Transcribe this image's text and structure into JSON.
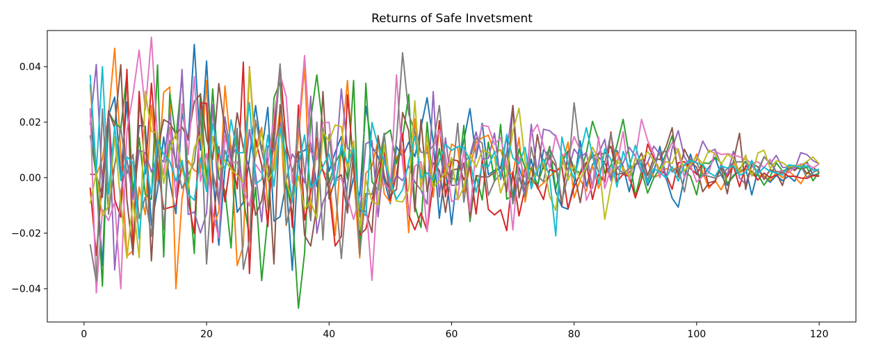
{
  "chart_data": {
    "type": "line",
    "title": "Returns of Safe Invetsment",
    "xlabel": "",
    "ylabel": "",
    "xlim": [
      -6,
      126
    ],
    "ylim": [
      -0.052,
      0.053
    ],
    "xticks": [
      0,
      20,
      40,
      60,
      80,
      100,
      120
    ],
    "xtick_labels": [
      "0",
      "20",
      "40",
      "60",
      "80",
      "100",
      "120"
    ],
    "yticks": [
      -0.04,
      -0.02,
      0.0,
      0.02,
      0.04
    ],
    "ytick_labels": [
      "−0.04",
      "−0.02",
      "0.00",
      "0.02",
      "0.04"
    ],
    "grid": false,
    "x": [
      1,
      120
    ],
    "series": [
      {
        "color": "#1f77b4",
        "amplitude_start": 0.02,
        "amplitude_end": 0.0015,
        "end_value": 0.0015,
        "peaks": [
          [
            1,
            0.023
          ],
          [
            18,
            0.048
          ],
          [
            20,
            0.042
          ],
          [
            5,
            0.029
          ]
        ]
      },
      {
        "color": "#ff7f0e",
        "amplitude_start": 0.02,
        "amplitude_end": 0.001,
        "end_value": 0.0008,
        "peaks": [
          [
            15,
            -0.04
          ],
          [
            20,
            0.035
          ],
          [
            27,
            0.04
          ],
          [
            36,
            0.04
          ],
          [
            43,
            0.035
          ]
        ]
      },
      {
        "color": "#2ca02c",
        "amplitude_start": 0.02,
        "amplitude_end": 0.0015,
        "end_value": 0.002,
        "peaks": [
          [
            35,
            -0.047
          ],
          [
            38,
            0.037
          ],
          [
            44,
            0.035
          ],
          [
            46,
            0.034
          ],
          [
            53,
            0.03
          ],
          [
            88,
            0.021
          ]
        ]
      },
      {
        "color": "#d62728",
        "amplitude_start": 0.02,
        "amplitude_end": 0.0008,
        "end_value": 0.0005,
        "peaks": [
          [
            2,
            -0.028
          ],
          [
            7,
            0.039
          ],
          [
            11,
            0.034
          ],
          [
            19,
            0.027
          ]
        ]
      },
      {
        "color": "#9467bd",
        "amplitude_start": 0.018,
        "amplitude_end": 0.002,
        "end_value": 0.005,
        "peaks": [
          [
            16,
            0.039
          ],
          [
            38,
            -0.02
          ],
          [
            57,
            0.031
          ],
          [
            70,
            0.026
          ],
          [
            117,
            0.009
          ]
        ]
      },
      {
        "color": "#8c564b",
        "amplitude_start": 0.018,
        "amplitude_end": 0.002,
        "end_value": 0.002,
        "peaks": [
          [
            11,
            -0.03
          ],
          [
            19,
            0.03
          ],
          [
            70,
            0.026
          ],
          [
            96,
            0.018
          ],
          [
            107,
            0.016
          ]
        ]
      },
      {
        "color": "#e377c2",
        "amplitude_start": 0.02,
        "amplitude_end": 0.0015,
        "end_value": 0.005,
        "peaks": [
          [
            6,
            -0.04
          ],
          [
            36,
            0.044
          ],
          [
            47,
            -0.037
          ],
          [
            51,
            0.037
          ],
          [
            91,
            0.021
          ]
        ]
      },
      {
        "color": "#7f7f7f",
        "amplitude_start": 0.018,
        "amplitude_end": 0.0015,
        "end_value": 0.003,
        "peaks": [
          [
            1,
            -0.024
          ],
          [
            26,
            -0.033
          ],
          [
            52,
            0.045
          ],
          [
            80,
            0.027
          ]
        ]
      },
      {
        "color": "#bcbd22",
        "amplitude_start": 0.015,
        "amplitude_end": 0.0015,
        "end_value": 0.005,
        "peaks": [
          [
            7,
            -0.029
          ],
          [
            27,
            0.039
          ],
          [
            71,
            0.025
          ],
          [
            85,
            -0.015
          ]
        ]
      },
      {
        "color": "#17becf",
        "amplitude_start": 0.01,
        "amplitude_end": 0.0015,
        "end_value": 0.003,
        "peaks": [
          [
            1,
            0.037
          ],
          [
            3,
            0.04
          ],
          [
            9,
            -0.022
          ],
          [
            77,
            -0.021
          ],
          [
            82,
            0.018
          ]
        ]
      }
    ]
  }
}
